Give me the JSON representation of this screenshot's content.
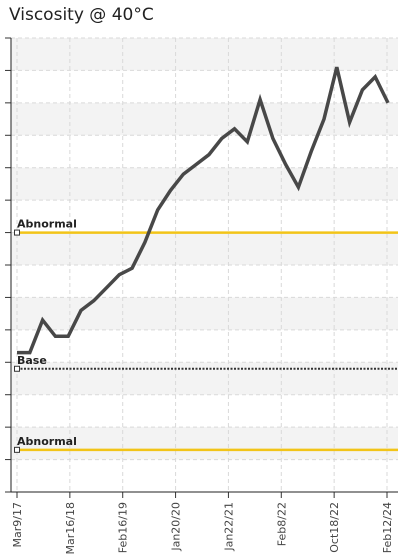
{
  "chart_data": {
    "type": "line",
    "title": "Viscosity @ 40°C",
    "xlabel": "",
    "ylabel": "",
    "x_tick_labels": [
      "Mar9/17",
      "Mar16/18",
      "Feb16/19",
      "Jan20/20",
      "Jan22/21",
      "Feb8/22",
      "Oct18/22",
      "Feb12/24"
    ],
    "ylim": [
      0,
      14
    ],
    "y_ticks": [
      0,
      1,
      2,
      3,
      4,
      5,
      6,
      7,
      8,
      9,
      10,
      11,
      12,
      13,
      14
    ],
    "grid": true,
    "series": [
      {
        "values": [
          4.3,
          4.3,
          5.3,
          4.8,
          4.8,
          5.6,
          5.9,
          6.3,
          6.7,
          6.9,
          7.7,
          8.7,
          9.3,
          9.8,
          10.1,
          10.4,
          10.9,
          11.2,
          10.8,
          12.1,
          10.9,
          10.1,
          9.4,
          10.5,
          11.5,
          13.1,
          11.4,
          12.4,
          12.8,
          12.0
        ],
        "color": "#484848"
      }
    ],
    "reference_lines": [
      {
        "label": "Abnormal",
        "value": 8.0,
        "color": "#f2c418",
        "style": "solid"
      },
      {
        "label": "Base",
        "value": 3.8,
        "color": "#333333",
        "style": "dotted"
      },
      {
        "label": "Abnormal",
        "value": 1.3,
        "color": "#f2c418",
        "style": "solid"
      }
    ]
  }
}
